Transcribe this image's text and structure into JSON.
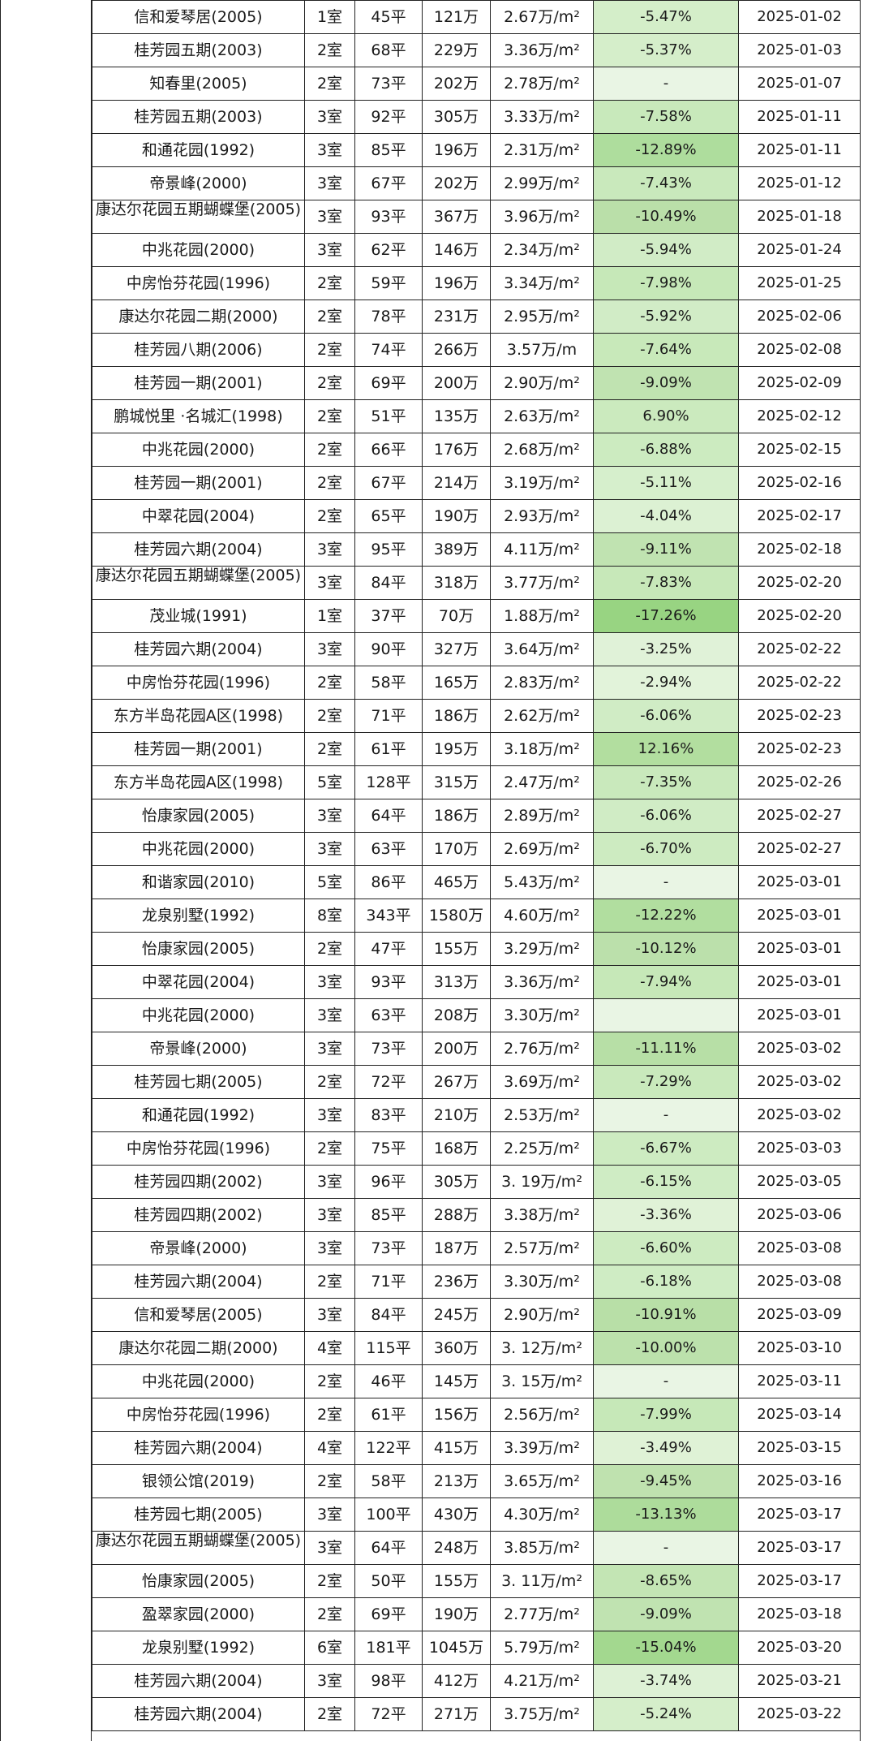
{
  "table": {
    "rows": [
      {
        "name": "信和爱琴居(2005)",
        "rooms": "1室",
        "area": "45平",
        "price": "121万",
        "ppsm": "2.67万/m²",
        "change": "-5.47%",
        "date": "2025-01-02",
        "color": "#d4eec9"
      },
      {
        "name": "桂芳园五期(2003)",
        "rooms": "2室",
        "area": "68平",
        "price": "229万",
        "ppsm": "3.36万/m²",
        "change": "-5.37%",
        "date": "2025-01-03",
        "color": "#d5eeca"
      },
      {
        "name": "知春里(2005)",
        "rooms": "2室",
        "area": "73平",
        "price": "202万",
        "ppsm": "2.78万/m²",
        "change": "-",
        "date": "2025-01-07",
        "color": "#e9f5e4"
      },
      {
        "name": "桂芳园五期(2003)",
        "rooms": "3室",
        "area": "92平",
        "price": "305万",
        "ppsm": "3.33万/m²",
        "change": "-7.58%",
        "date": "2025-01-11",
        "color": "#c8e9bb"
      },
      {
        "name": "和通花园(1992)",
        "rooms": "3室",
        "area": "85平",
        "price": "196万",
        "ppsm": "2.31万/m²",
        "change": "-12.89%",
        "date": "2025-01-11",
        "color": "#aedd9d"
      },
      {
        "name": "帝景峰(2000)",
        "rooms": "3室",
        "area": "67平",
        "price": "202万",
        "ppsm": "2.99万/m²",
        "change": "-7.43%",
        "date": "2025-01-12",
        "color": "#c9e9bc"
      },
      {
        "name": "康达尔花园五期蝴蝶堡(2005)",
        "rooms": "3室",
        "area": "93平",
        "price": "367万",
        "ppsm": "3.96万/m²",
        "change": "-10.49%",
        "date": "2025-01-18",
        "color": "#badfa9",
        "wrap": true
      },
      {
        "name": "中兆花园(2000)",
        "rooms": "3室",
        "area": "62平",
        "price": "146万",
        "ppsm": "2.34万/m²",
        "change": "-5.94%",
        "date": "2025-01-24",
        "color": "#d1ecc6"
      },
      {
        "name": "中房怡芬花园(1996)",
        "rooms": "2室",
        "area": "59平",
        "price": "196万",
        "ppsm": "3.34万/m²",
        "change": "-7.98%",
        "date": "2025-01-25",
        "color": "#c6e8b8"
      },
      {
        "name": "康达尔花园二期(2000)",
        "rooms": "2室",
        "area": "78平",
        "price": "231万",
        "ppsm": "2.95万/m²",
        "change": "-5.92%",
        "date": "2025-02-06",
        "color": "#d1ecc6"
      },
      {
        "name": "桂芳园八期(2006)",
        "rooms": "2室",
        "area": "74平",
        "price": "266万",
        "ppsm": "3.57万/m",
        "change": "-7.64%",
        "date": "2025-02-08",
        "color": "#c8e9ba"
      },
      {
        "name": "桂芳园一期(2001)",
        "rooms": "2室",
        "area": "69平",
        "price": "200万",
        "ppsm": "2.90万/m²",
        "change": "-9.09%",
        "date": "2025-02-09",
        "color": "#c0e3b1"
      },
      {
        "name": "鹏城悦里 ·名城汇(1998)",
        "rooms": "2室",
        "area": "51平",
        "price": "135万",
        "ppsm": "2.63万/m²",
        "change": "6.90%",
        "date": "2025-02-12",
        "color": "#cbeabe"
      },
      {
        "name": "中兆花园(2000)",
        "rooms": "2室",
        "area": "66平",
        "price": "176万",
        "ppsm": "2.68万/m²",
        "change": "-6.88%",
        "date": "2025-02-15",
        "color": "#ccebc0"
      },
      {
        "name": "桂芳园一期(2001)",
        "rooms": "2室",
        "area": "67平",
        "price": "214万",
        "ppsm": "3.19万/m²",
        "change": "-5.11%",
        "date": "2025-02-16",
        "color": "#d6efcc"
      },
      {
        "name": "中翠花园(2004)",
        "rooms": "2室",
        "area": "65平",
        "price": "190万",
        "ppsm": "2.93万/m²",
        "change": "-4.04%",
        "date": "2025-02-17",
        "color": "#dcf1d3"
      },
      {
        "name": "桂芳园六期(2004)",
        "rooms": "3室",
        "area": "95平",
        "price": "389万",
        "ppsm": "4.11万/m²",
        "change": "-9.11%",
        "date": "2025-02-18",
        "color": "#c0e3b1"
      },
      {
        "name": "康达尔花园五期蝴蝶堡(2005)",
        "rooms": "3室",
        "area": "84平",
        "price": "318万",
        "ppsm": "3.77万/m²",
        "change": "-7.83%",
        "date": "2025-02-20",
        "color": "#c7e8b9",
        "wrap": true
      },
      {
        "name": "茂业城(1991)",
        "rooms": "1室",
        "area": "37平",
        "price": "70万",
        "ppsm": "1.88万/m²",
        "change": "-17.26%",
        "date": "2025-02-20",
        "color": "#98d482"
      },
      {
        "name": "桂芳园六期(2004)",
        "rooms": "3室",
        "area": "90平",
        "price": "327万",
        "ppsm": "3.64万/m²",
        "change": "-3.25%",
        "date": "2025-02-22",
        "color": "#e0f2d8"
      },
      {
        "name": "中房怡芬花园(1996)",
        "rooms": "2室",
        "area": "58平",
        "price": "165万",
        "ppsm": "2.83万/m²",
        "change": "-2.94%",
        "date": "2025-02-22",
        "color": "#e2f3da"
      },
      {
        "name": "东方半岛花园A区(1998)",
        "rooms": "2室",
        "area": "71平",
        "price": "186万",
        "ppsm": "2.62万/m²",
        "change": "-6.06%",
        "date": "2025-02-23",
        "color": "#d0ecc5"
      },
      {
        "name": "桂芳园一期(2001)",
        "rooms": "2室",
        "area": "61平",
        "price": "195万",
        "ppsm": "3.18万/m²",
        "change": "12.16%",
        "date": "2025-02-23",
        "color": "#b2de9f"
      },
      {
        "name": "东方半岛花园A区(1998)",
        "rooms": "5室",
        "area": "128平",
        "price": "315万",
        "ppsm": "2.47万/m²",
        "change": "-7.35%",
        "date": "2025-02-26",
        "color": "#c9e9bc"
      },
      {
        "name": "怡康家园(2005)",
        "rooms": "3室",
        "area": "64平",
        "price": "186万",
        "ppsm": "2.89万/m²",
        "change": "-6.06%",
        "date": "2025-02-27",
        "color": "#d0ecc5"
      },
      {
        "name": "中兆花园(2000)",
        "rooms": "3室",
        "area": "63平",
        "price": "170万",
        "ppsm": "2.69万/m²",
        "change": "-6.70%",
        "date": "2025-02-27",
        "color": "#cdebc1"
      },
      {
        "name": "和谐家园(2010)",
        "rooms": "5室",
        "area": "86平",
        "price": "465万",
        "ppsm": "5.43万/m²",
        "change": "-",
        "date": "2025-03-01",
        "color": "#e9f5e4"
      },
      {
        "name": "龙泉别墅(1992)",
        "rooms": "8室",
        "area": "343平",
        "price": "1580万",
        "ppsm": "4.60万/m²",
        "change": "-12.22%",
        "date": "2025-03-01",
        "color": "#b1de9f"
      },
      {
        "name": "怡康家园(2005)",
        "rooms": "2室",
        "area": "47平",
        "price": "155万",
        "ppsm": "3.29万/m²",
        "change": "-10.12%",
        "date": "2025-03-01",
        "color": "#bbe0ab"
      },
      {
        "name": "中翠花园(2004)",
        "rooms": "3室",
        "area": "93平",
        "price": "313万",
        "ppsm": "3.36万/m²",
        "change": "-7.94%",
        "date": "2025-03-01",
        "color": "#c6e8b8"
      },
      {
        "name": "中兆花园(2000)",
        "rooms": "3室",
        "area": "63平",
        "price": "208万",
        "ppsm": "3.30万/m²",
        "change": "",
        "date": "2025-03-01",
        "color": "#e9f5e4"
      },
      {
        "name": "帝景峰(2000)",
        "rooms": "3室",
        "area": "73平",
        "price": "200万",
        "ppsm": "2.76万/m²",
        "change": "-11.11%",
        "date": "2025-03-02",
        "color": "#b7dfa6"
      },
      {
        "name": "桂芳园七期(2005)",
        "rooms": "2室",
        "area": "72平",
        "price": "267万",
        "ppsm": "3.69万/m²",
        "change": "-7.29%",
        "date": "2025-03-02",
        "color": "#c9e9bc"
      },
      {
        "name": "和通花园(1992)",
        "rooms": "3室",
        "area": "83平",
        "price": "210万",
        "ppsm": "2.53万/m²",
        "change": "-",
        "date": "2025-03-02",
        "color": "#e9f5e4"
      },
      {
        "name": "中房怡芬花园(1996)",
        "rooms": "2室",
        "area": "75平",
        "price": "168万",
        "ppsm": "2.25万/m²",
        "change": "-6.67%",
        "date": "2025-03-03",
        "color": "#cdebc1"
      },
      {
        "name": "桂芳园四期(2002)",
        "rooms": "3室",
        "area": "96平",
        "price": "305万",
        "ppsm": "3. 19万/m²",
        "change": "-6.15%",
        "date": "2025-03-05",
        "color": "#cfecc4"
      },
      {
        "name": "桂芳园四期(2002)",
        "rooms": "3室",
        "area": "85平",
        "price": "288万",
        "ppsm": "3.38万/m²",
        "change": "-3.36%",
        "date": "2025-03-06",
        "color": "#e0f2d7"
      },
      {
        "name": "帝景峰(2000)",
        "rooms": "3室",
        "area": "73平",
        "price": "187万",
        "ppsm": "2.57万/m²",
        "change": "-6.60%",
        "date": "2025-03-08",
        "color": "#cdebc1"
      },
      {
        "name": "桂芳园六期(2004)",
        "rooms": "2室",
        "area": "71平",
        "price": "236万",
        "ppsm": "3.30万/m²",
        "change": "-6.18%",
        "date": "2025-03-08",
        "color": "#cfecc4"
      },
      {
        "name": "信和爱琴居(2005)",
        "rooms": "3室",
        "area": "84平",
        "price": "245万",
        "ppsm": "2.90万/m²",
        "change": "-10.91%",
        "date": "2025-03-09",
        "color": "#b8dfa7"
      },
      {
        "name": "康达尔花园二期(2000)",
        "rooms": "4室",
        "area": "115平",
        "price": "360万",
        "ppsm": "3. 12万/m²",
        "change": "-10.00%",
        "date": "2025-03-10",
        "color": "#bce1ac"
      },
      {
        "name": "中兆花园(2000)",
        "rooms": "2室",
        "area": "46平",
        "price": "145万",
        "ppsm": "3. 15万/m²",
        "change": "-",
        "date": "2025-03-11",
        "color": "#e9f5e4"
      },
      {
        "name": "中房怡芬花园(1996)",
        "rooms": "2室",
        "area": "61平",
        "price": "156万",
        "ppsm": "2.56万/m²",
        "change": "-7.99%",
        "date": "2025-03-14",
        "color": "#c6e8b8"
      },
      {
        "name": "桂芳园六期(2004)",
        "rooms": "4室",
        "area": "122平",
        "price": "415万",
        "ppsm": "3.39万/m²",
        "change": "-3.49%",
        "date": "2025-03-15",
        "color": "#dff2d6"
      },
      {
        "name": "银领公馆(2019)",
        "rooms": "2室",
        "area": "58平",
        "price": "213万",
        "ppsm": "3.65万/m²",
        "change": "-9.45%",
        "date": "2025-03-16",
        "color": "#bfe2af"
      },
      {
        "name": "桂芳园七期(2005)",
        "rooms": "3室",
        "area": "100平",
        "price": "430万",
        "ppsm": "4.30万/m²",
        "change": "-13.13%",
        "date": "2025-03-17",
        "color": "#addc9b"
      },
      {
        "name": "康达尔花园五期蝴蝶堡(2005)",
        "rooms": "3室",
        "area": "64平",
        "price": "248万",
        "ppsm": "3.85万/m²",
        "change": "-",
        "date": "2025-03-17",
        "color": "#e9f5e4",
        "wrap": true
      },
      {
        "name": "怡康家园(2005)",
        "rooms": "2室",
        "area": "50平",
        "price": "155万",
        "ppsm": "3. 11万/m²",
        "change": "-8.65%",
        "date": "2025-03-17",
        "color": "#c3e5b4"
      },
      {
        "name": "盈翠家园(2000)",
        "rooms": "2室",
        "area": "69平",
        "price": "190万",
        "ppsm": "2.77万/m²",
        "change": "-9.09%",
        "date": "2025-03-18",
        "color": "#c0e3b1"
      },
      {
        "name": "龙泉别墅(1992)",
        "rooms": "6室",
        "area": "181平",
        "price": "1045万",
        "ppsm": "5.79万/m²",
        "change": "-15.04%",
        "date": "2025-03-20",
        "color": "#a3d88f"
      },
      {
        "name": "桂芳园六期(2004)",
        "rooms": "3室",
        "area": "98平",
        "price": "412万",
        "ppsm": "4.21万/m²",
        "change": "-3.74%",
        "date": "2025-03-21",
        "color": "#ddf1d5"
      },
      {
        "name": "桂芳园六期(2004)",
        "rooms": "2室",
        "area": "72平",
        "price": "271万",
        "ppsm": "3.75万/m²",
        "change": "-5.24%",
        "date": "2025-03-22",
        "color": "#d5eeca"
      }
    ]
  }
}
